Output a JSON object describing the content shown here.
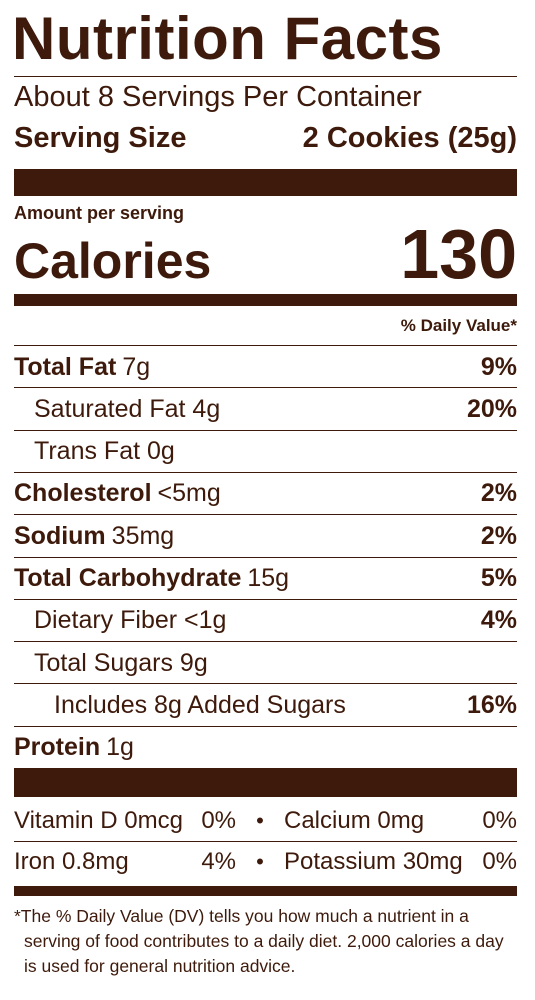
{
  "header": {
    "title": "Nutrition Facts",
    "servings": "About 8 Servings Per Container",
    "serving_size_label": "Serving Size",
    "serving_size": "2 Cookies (25g)"
  },
  "calories": {
    "amount_label": "Amount per serving",
    "label": "Calories",
    "value": 130
  },
  "dv_header": "% Daily Value*",
  "nutrients": [
    {
      "name": "Total Fat",
      "amount": "7g",
      "dv": "9%",
      "bold": true,
      "indent": 0
    },
    {
      "name": "Saturated Fat 4g",
      "dv": "20%",
      "bold": false,
      "indent": 1
    },
    {
      "name": "Trans Fat 0g",
      "bold": false,
      "indent": 1
    },
    {
      "name": "Cholesterol",
      "amount": "<5mg",
      "dv": "2%",
      "bold": true,
      "indent": 0
    },
    {
      "name": "Sodium",
      "amount": "35mg",
      "dv": "2%",
      "bold": true,
      "indent": 0
    },
    {
      "name": "Total Carbohydrate",
      "amount": "15g",
      "dv": "5%",
      "bold": true,
      "indent": 0
    },
    {
      "name": "Dietary Fiber <1g",
      "dv": "4%",
      "bold": false,
      "indent": 1
    },
    {
      "name": "Total Sugars 9g",
      "bold": false,
      "indent": 1
    },
    {
      "name": "Includes 8g Added Sugars",
      "dv": "16%",
      "bold": false,
      "indent": 2
    },
    {
      "name": "Protein",
      "amount": "1g",
      "bold": true,
      "indent": 0
    }
  ],
  "vitamins": [
    [
      {
        "name": "Vitamin D 0mcg",
        "dv": "0%"
      },
      {
        "name": "Calcium 0mg",
        "dv": "0%"
      }
    ],
    [
      {
        "name": "Iron 0.8mg",
        "dv": "4%"
      },
      {
        "name": "Potassium 30mg",
        "dv": "0%"
      }
    ]
  ],
  "footnote": "*The % Daily Value (DV) tells you how much a nutrient in a serving of food contributes to a daily diet. 2,000 calories a day is used for general nutrition advice."
}
